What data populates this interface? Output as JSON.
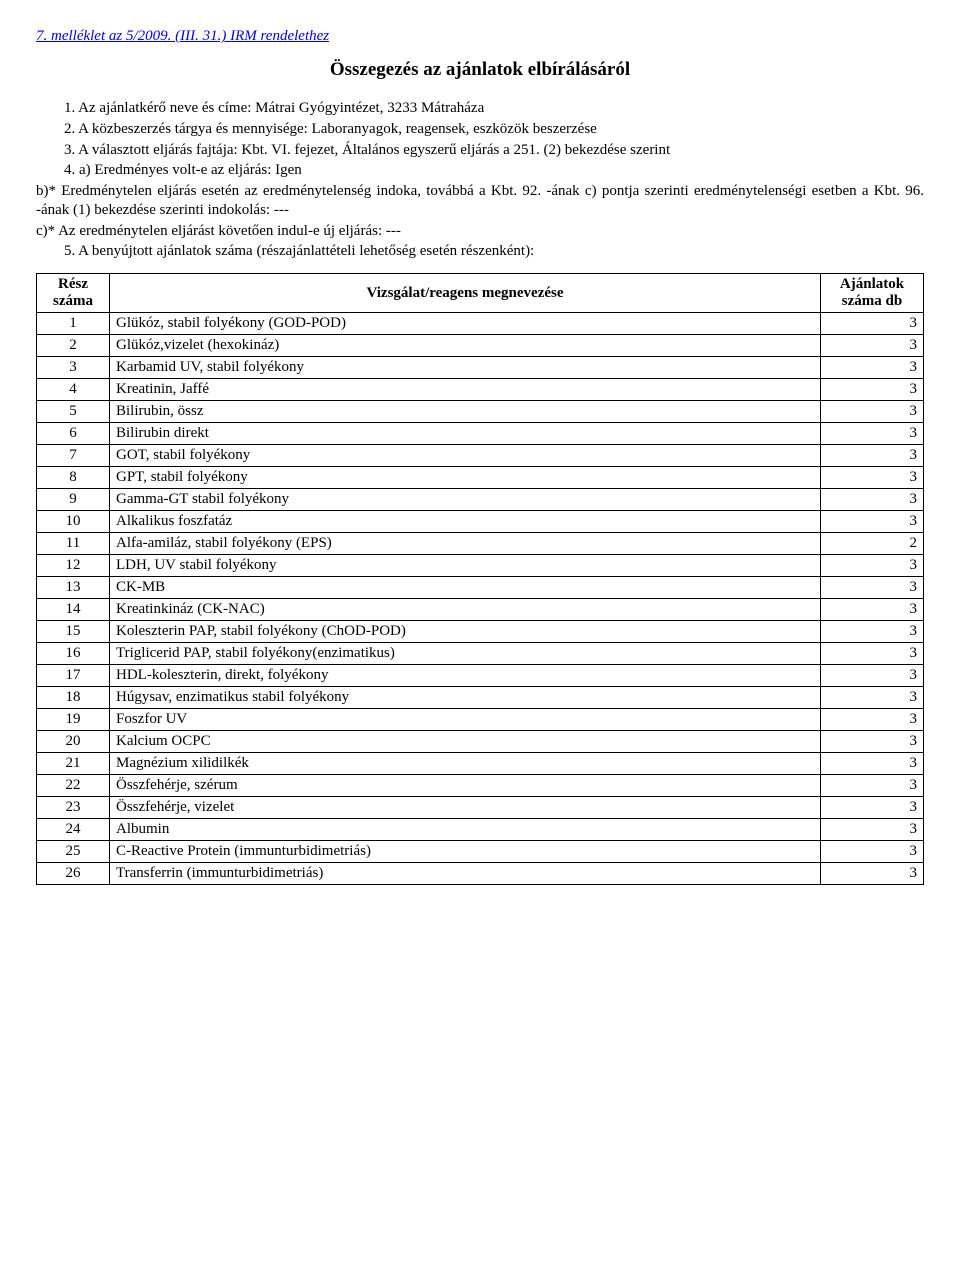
{
  "attachment_ref": "7. melléklet az 5/2009. (III. 31.) IRM rendelethez",
  "title": "Összegezés az ajánlatok elbírálásáról",
  "paragraphs": {
    "p1": "1. Az ajánlatkérő neve és címe: Mátrai Gyógyintézet, 3233 Mátraháza",
    "p2": "2. A közbeszerzés tárgya és mennyisége: Laboranyagok, reagensek, eszközök beszerzése",
    "p3": "3. A választott eljárás fajtája: Kbt. VI. fejezet, Általános egyszerű eljárás a 251. (2) bekezdése szerint",
    "p4a": "4. a) Eredményes volt-e az eljárás: Igen",
    "p4b": "b)* Eredménytelen eljárás esetén az eredménytelenség indoka, továbbá a Kbt. 92. -ának c) pontja szerinti eredménytelenségi esetben a Kbt. 96. -ának (1) bekezdése szerinti indokolás: ---",
    "p4c": "c)* Az eredménytelen eljárást követően indul-e új eljárás: ---",
    "p5": "5. A benyújtott ajánlatok száma (részajánlattételi lehetőség esetén részenként):"
  },
  "table": {
    "headers": {
      "resz": "Rész száma",
      "name": "Vizsgálat/reagens megnevezése",
      "count": "Ajánlatok száma db"
    },
    "rows": [
      {
        "n": "1",
        "name": "Glükóz, stabil folyékony (GOD-POD)",
        "c": "3"
      },
      {
        "n": "2",
        "name": "Glükóz,vizelet (hexokináz)",
        "c": "3"
      },
      {
        "n": "3",
        "name": "Karbamid UV, stabil folyékony",
        "c": "3"
      },
      {
        "n": "4",
        "name": "Kreatinin, Jaffé",
        "c": "3"
      },
      {
        "n": "5",
        "name": "Bilirubin, össz",
        "c": "3"
      },
      {
        "n": "6",
        "name": "Bilirubin direkt",
        "c": "3"
      },
      {
        "n": "7",
        "name": "GOT, stabil folyékony",
        "c": "3"
      },
      {
        "n": "8",
        "name": "GPT, stabil folyékony",
        "c": "3"
      },
      {
        "n": "9",
        "name": "Gamma-GT stabil folyékony",
        "c": "3"
      },
      {
        "n": "10",
        "name": "Alkalikus foszfatáz",
        "c": "3"
      },
      {
        "n": "11",
        "name": "Alfa-amiláz, stabil folyékony (EPS)",
        "c": "2"
      },
      {
        "n": "12",
        "name": "LDH, UV stabil folyékony",
        "c": "3"
      },
      {
        "n": "13",
        "name": "CK-MB",
        "c": "3"
      },
      {
        "n": "14",
        "name": "Kreatinkináz (CK-NAC)",
        "c": "3"
      },
      {
        "n": "15",
        "name": "Koleszterin PAP, stabil folyékony (ChOD-POD)",
        "c": "3"
      },
      {
        "n": "16",
        "name": "Triglicerid PAP, stabil folyékony(enzimatikus)",
        "c": "3"
      },
      {
        "n": "17",
        "name": "HDL-koleszterin, direkt, folyékony",
        "c": "3"
      },
      {
        "n": "18",
        "name": "Húgysav, enzimatikus stabil folyékony",
        "c": "3"
      },
      {
        "n": "19",
        "name": "Foszfor UV",
        "c": "3"
      },
      {
        "n": "20",
        "name": "Kalcium OCPC",
        "c": "3"
      },
      {
        "n": "21",
        "name": "Magnézium xilidilkék",
        "c": "3"
      },
      {
        "n": "22",
        "name": "Összfehérje, szérum",
        "c": "3"
      },
      {
        "n": "23",
        "name": "Összfehérje, vizelet",
        "c": "3"
      },
      {
        "n": "24",
        "name": "Albumin",
        "c": "3"
      },
      {
        "n": "25",
        "name": "C-Reactive Protein (immunturbidimetriás)",
        "c": "3"
      },
      {
        "n": "26",
        "name": "Transferrin (immunturbidimetriás)",
        "c": "3"
      }
    ]
  }
}
